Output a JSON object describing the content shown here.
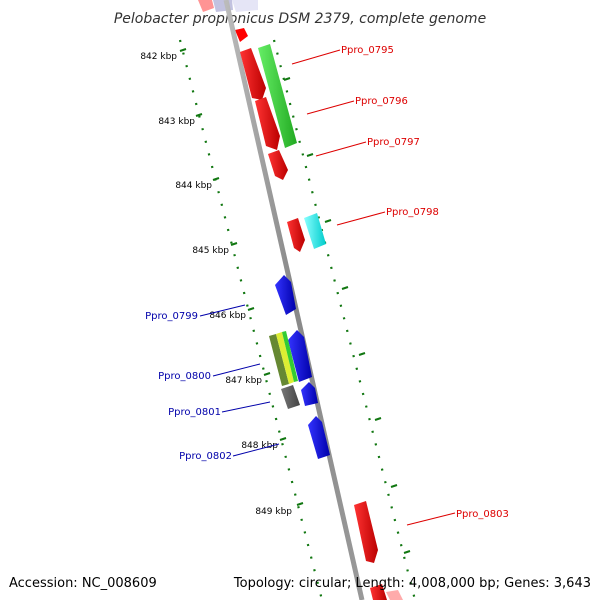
{
  "title": "Pelobacter propionicus DSM 2379, complete genome",
  "footer": {
    "accession": "Accession: NC_008609",
    "summary": "Topology: circular; Length: 4,008,000 bp; Genes: 3,643"
  },
  "scale_labels": [
    "842 kbp",
    "843 kbp",
    "844 kbp",
    "845 kbp",
    "846 kbp",
    "847 kbp",
    "848 kbp",
    "849 kbp"
  ],
  "genes_forward": [
    {
      "label": "Ppro_0795",
      "color": "#dd0000"
    },
    {
      "label": "Ppro_0796",
      "color": "#dd0000"
    },
    {
      "label": "Ppro_0797",
      "color": "#dd0000"
    },
    {
      "label": "Ppro_0798",
      "color": "#dd0000"
    },
    {
      "label": "Ppro_0803",
      "color": "#dd0000"
    }
  ],
  "genes_reverse": [
    {
      "label": "Ppro_0799",
      "color": "#0000bb"
    },
    {
      "label": "Ppro_0800",
      "color": "#0000bb"
    },
    {
      "label": "Ppro_0801",
      "color": "#0000bb"
    },
    {
      "label": "Ppro_0802",
      "color": "#0000bb"
    }
  ],
  "colors": {
    "backbone": "#888888",
    "tick": "#117711",
    "cds_forward": "#ff0000",
    "cds_reverse": "#0000ff",
    "feature_green": "#33cc33",
    "feature_cyan": "#00eeee",
    "feature_gray": "#555555",
    "feature_yellow": "#ddee33",
    "feature_olive": "#668833"
  }
}
